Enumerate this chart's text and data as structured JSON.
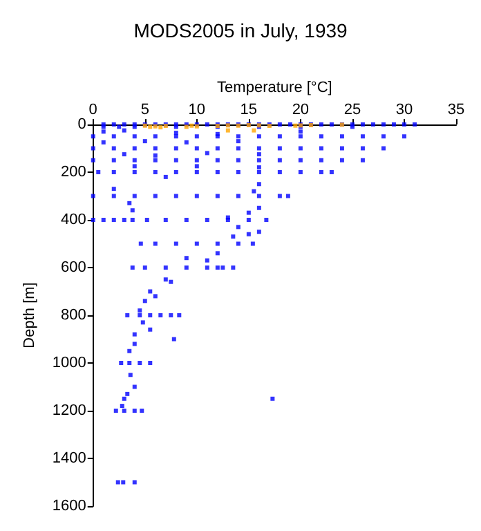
{
  "chart_data": {
    "type": "scatter",
    "title": "MODS2005 in July, 1939",
    "xlabel": "Temperature [°C]",
    "ylabel": "Depth [m]",
    "xlim": [
      0,
      35
    ],
    "xticks": [
      0,
      5,
      10,
      15,
      20,
      25,
      30,
      35
    ],
    "ylim": [
      1600,
      0
    ],
    "yticks": [
      0,
      200,
      400,
      600,
      800,
      1000,
      1200,
      1400,
      1600
    ],
    "grid": false,
    "marker": "square",
    "series": [
      {
        "color": "#0000ff",
        "x": [
          1,
          2,
          3,
          4,
          5,
          6,
          7,
          8,
          9,
          10,
          11,
          12,
          13,
          14,
          15,
          16,
          17,
          18,
          19,
          20,
          21,
          22,
          23,
          24,
          25,
          26,
          27,
          28,
          29,
          30,
          31,
          1,
          2.5,
          4,
          8,
          12,
          16,
          20,
          25,
          0,
          2,
          4,
          6,
          8,
          10,
          12,
          14,
          16,
          18,
          20,
          22,
          24,
          26,
          28,
          30,
          0,
          2,
          4,
          6,
          8,
          10,
          12,
          14,
          16,
          18,
          20,
          22,
          24,
          26,
          28,
          0,
          2,
          4,
          6,
          8,
          10,
          12,
          14,
          16,
          18,
          20,
          22,
          24,
          26,
          0.5,
          2,
          4,
          6,
          8,
          10,
          12,
          14,
          16,
          18,
          20,
          22,
          23,
          0,
          2,
          4,
          6,
          8,
          10,
          12,
          14,
          16,
          18,
          18.8,
          0,
          1,
          2,
          3,
          3.8,
          5.2,
          7,
          9,
          11,
          13,
          15,
          16.7,
          4.6,
          6,
          8,
          10,
          12,
          14,
          15.4,
          3.8,
          5,
          7,
          9,
          11,
          12,
          12.5,
          13.5,
          3.3,
          4.5,
          5.5,
          6.5,
          7.5,
          8.3,
          2.7,
          3.5,
          4.5,
          5.5,
          2.2,
          3,
          4,
          4.7,
          2.4,
          2.9,
          4,
          17.3,
          1,
          3,
          8,
          12,
          20,
          1,
          5,
          9,
          14,
          3,
          6,
          11,
          16,
          4,
          10,
          16,
          2,
          7,
          16,
          15.5,
          3.5,
          3.8,
          16,
          15,
          13,
          14,
          16,
          13.5,
          15,
          12,
          9,
          11,
          7,
          7.5,
          5.5,
          6,
          4.5,
          5,
          4.8,
          5.5,
          4,
          4,
          3.5,
          7.8,
          3.6,
          4,
          3.3,
          3,
          2.8
        ],
        "values": [
          0,
          0,
          0,
          0,
          0,
          0,
          0,
          0,
          0,
          0,
          0,
          0,
          0,
          0,
          0,
          0,
          0,
          0,
          0,
          0,
          0,
          0,
          0,
          0,
          0,
          0,
          0,
          0,
          0,
          0,
          0,
          10,
          10,
          10,
          10,
          10,
          10,
          10,
          10,
          50,
          50,
          50,
          50,
          50,
          50,
          50,
          50,
          50,
          50,
          50,
          50,
          50,
          50,
          50,
          50,
          100,
          100,
          100,
          100,
          100,
          100,
          100,
          100,
          100,
          100,
          100,
          100,
          100,
          100,
          100,
          150,
          150,
          150,
          150,
          150,
          150,
          150,
          150,
          150,
          150,
          150,
          150,
          150,
          150,
          200,
          200,
          200,
          200,
          200,
          200,
          200,
          200,
          200,
          200,
          200,
          200,
          200,
          300,
          300,
          300,
          300,
          300,
          300,
          300,
          300,
          300,
          300,
          300,
          400,
          400,
          400,
          400,
          400,
          400,
          400,
          400,
          400,
          400,
          400,
          400,
          500,
          500,
          500,
          500,
          500,
          500,
          500,
          600,
          600,
          600,
          600,
          600,
          600,
          600,
          600,
          800,
          800,
          800,
          800,
          800,
          800,
          1000,
          1000,
          1000,
          1000,
          1200,
          1200,
          1200,
          1200,
          1500,
          1500,
          1500,
          1150,
          30,
          25,
          35,
          40,
          30,
          75,
          70,
          75,
          70,
          125,
          130,
          120,
          125,
          175,
          175,
          180,
          270,
          220,
          250,
          280,
          330,
          360,
          350,
          370,
          390,
          430,
          450,
          470,
          460,
          540,
          560,
          570,
          650,
          660,
          700,
          720,
          780,
          740,
          830,
          860,
          880,
          920,
          950,
          900,
          1050,
          1100,
          1130,
          1150,
          1180
        ]
      },
      {
        "color": "#ffa500",
        "x": [
          5,
          5.5,
          6,
          6.5,
          7,
          9,
          9.5,
          10,
          12,
          13,
          14,
          15,
          16,
          17,
          19.5,
          20,
          21,
          24,
          13,
          15.5
        ],
        "values": [
          5,
          10,
          8,
          12,
          6,
          10,
          5,
          8,
          6,
          4,
          5,
          3,
          4,
          6,
          5,
          4,
          3,
          1,
          25,
          25
        ]
      }
    ]
  }
}
